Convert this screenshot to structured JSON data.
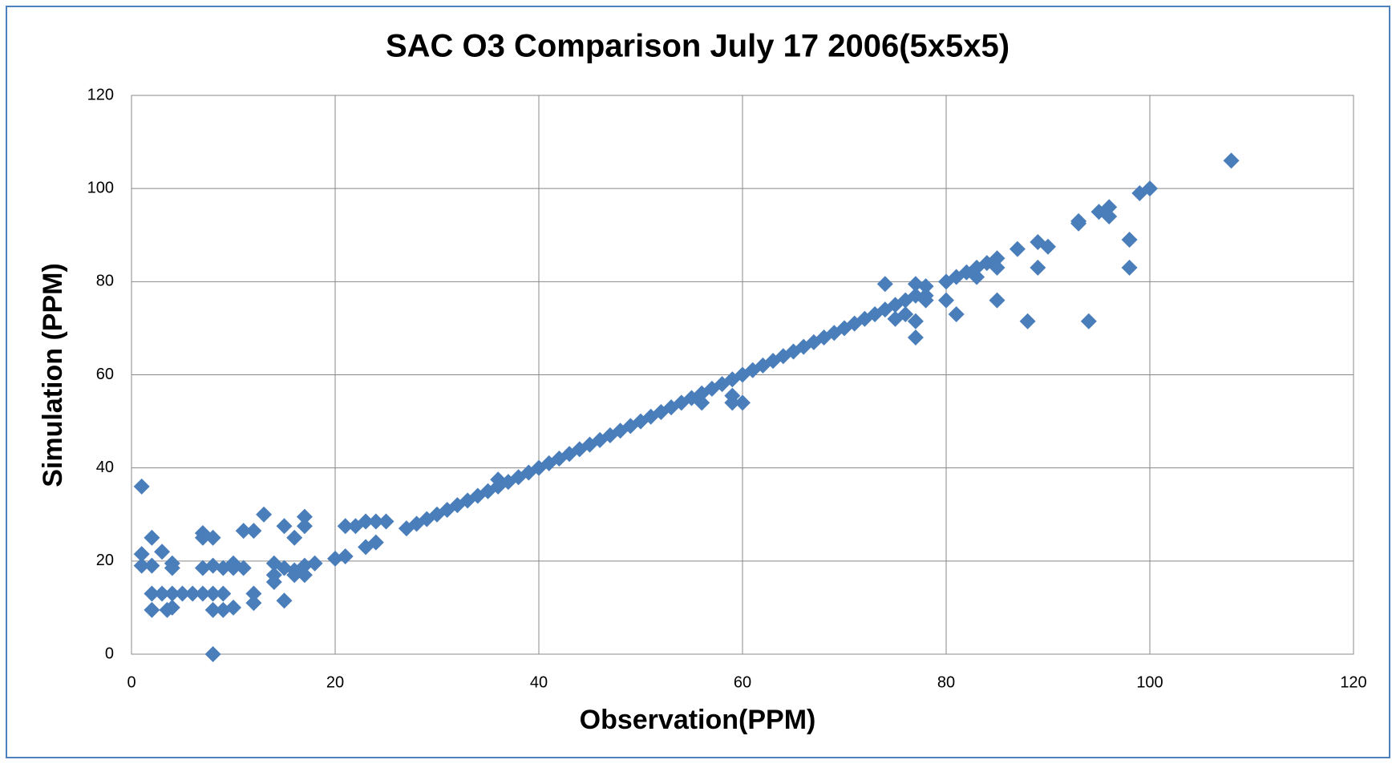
{
  "chart_data": {
    "type": "scatter",
    "title": "SAC O3 Comparison July 17 2006(5x5x5)",
    "x_label": "Observation(PPM)",
    "y_label": "Simulation (PPM)",
    "color": "#4a7ebb",
    "grid": true,
    "xlim": [
      0,
      120
    ],
    "ylim": [
      0,
      120
    ],
    "xticks": [
      0,
      20,
      40,
      60,
      80,
      100,
      120
    ],
    "yticks": [
      0,
      20,
      40,
      60,
      80,
      100,
      120
    ],
    "x": [
      1,
      1,
      1,
      2,
      2,
      2,
      2,
      3,
      3,
      3.5,
      4,
      4,
      4,
      4,
      5,
      6,
      7,
      7,
      7,
      7,
      8,
      8,
      8,
      8,
      8,
      9,
      9,
      9,
      10,
      10,
      10,
      11,
      11,
      12,
      12,
      12,
      13,
      14,
      14,
      14,
      15,
      15,
      15,
      16,
      16,
      16,
      17,
      17,
      17,
      17,
      18,
      20,
      21,
      21,
      22,
      23,
      23,
      24,
      24,
      25,
      27,
      28,
      29,
      30,
      31,
      32,
      33,
      34,
      35,
      36,
      36,
      37,
      38,
      39,
      40,
      41,
      42,
      43,
      44,
      45,
      46,
      47,
      48,
      49,
      50,
      51,
      52,
      53,
      54,
      55,
      56,
      57,
      58,
      59,
      60,
      61,
      62,
      63,
      64,
      65,
      66,
      67,
      68,
      69,
      70,
      71,
      72,
      73,
      56,
      59,
      59,
      60,
      74,
      74,
      75,
      75,
      76,
      76,
      77,
      77,
      77,
      77,
      78,
      78,
      78,
      80,
      80,
      81,
      81,
      82,
      83,
      83,
      84,
      85,
      85,
      85,
      87,
      88,
      89,
      89,
      90,
      93,
      93,
      94,
      95,
      96,
      96,
      98,
      98,
      99,
      100,
      108
    ],
    "values": [
      36,
      21.5,
      19,
      25,
      19,
      13,
      9.5,
      22,
      13,
      9.5,
      19.5,
      18.5,
      13,
      10,
      13,
      13,
      26,
      25,
      18.5,
      13,
      25,
      19,
      13,
      9.5,
      0,
      18.5,
      13,
      9.5,
      19.5,
      18.5,
      10,
      26.5,
      18.5,
      26.5,
      13,
      11,
      30,
      19.5,
      15.5,
      17,
      27.5,
      18.5,
      11.5,
      25,
      17,
      18,
      29.5,
      27.5,
      19,
      17,
      19.5,
      20.5,
      27.5,
      21,
      27.5,
      28.5,
      23,
      28.5,
      24,
      28.5,
      27,
      28,
      29,
      30,
      31,
      32,
      33,
      34,
      35,
      37.5,
      36,
      37,
      38,
      39,
      40,
      41,
      42,
      43,
      44,
      45,
      46,
      47,
      48,
      49,
      50,
      51,
      52,
      53,
      54,
      55,
      56,
      57,
      58,
      59,
      60,
      61,
      62,
      63,
      64,
      65,
      66,
      67,
      68,
      69,
      70,
      71,
      72,
      73,
      54,
      55.5,
      54,
      54,
      79.5,
      74,
      75,
      72,
      76,
      73,
      79.5,
      77,
      71.5,
      68,
      79,
      77,
      76,
      80,
      76,
      81,
      73,
      82,
      83,
      81,
      84,
      85,
      83,
      76,
      87,
      71.5,
      88.5,
      83,
      87.5,
      93,
      92.5,
      71.5,
      95,
      96,
      94,
      89,
      83,
      99,
      100,
      106
    ]
  }
}
